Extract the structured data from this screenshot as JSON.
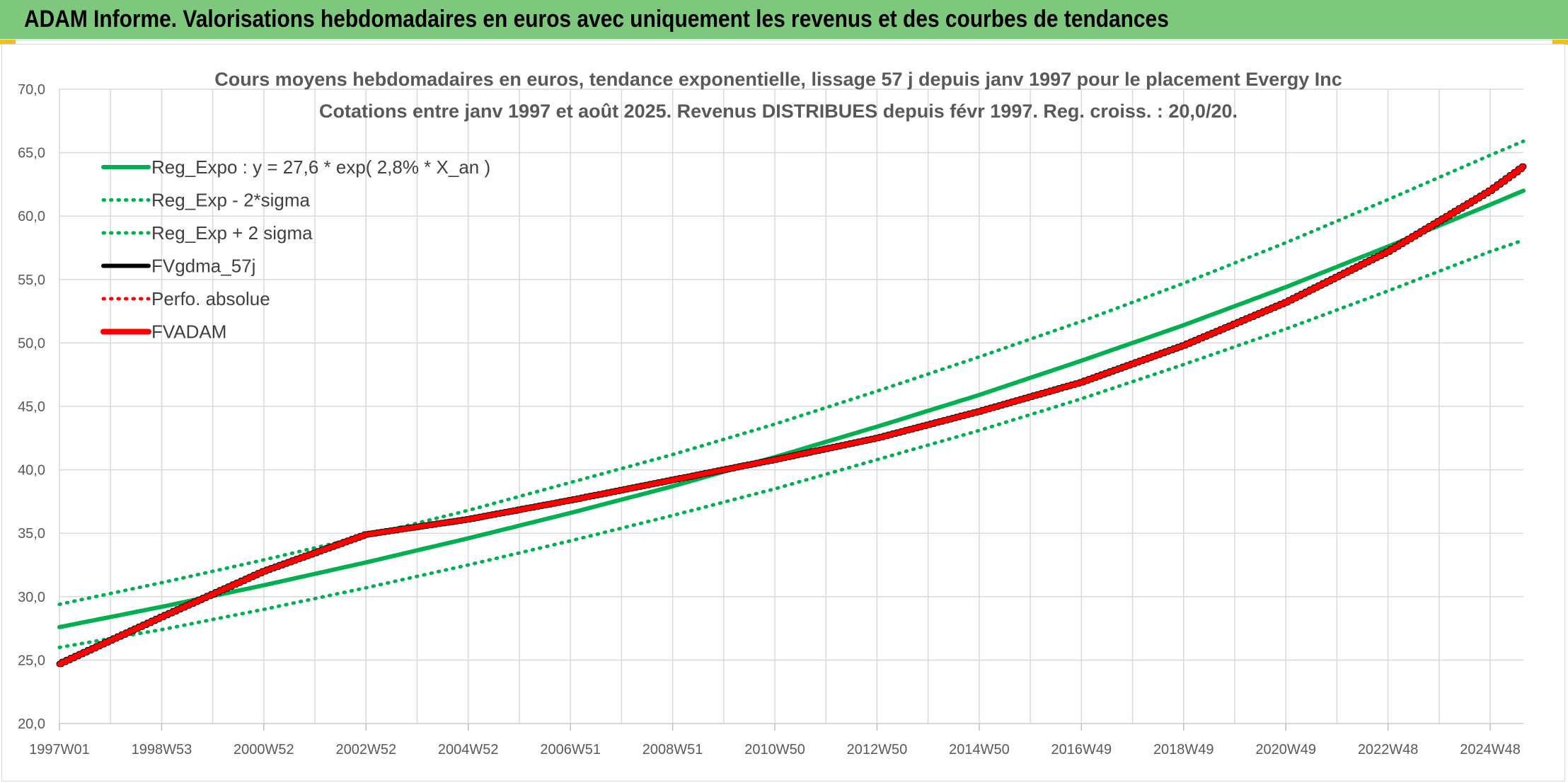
{
  "header": {
    "title": "ADAM Informe. Valorisations hebdomadaires en euros avec uniquement les revenus et des courbes de tendances"
  },
  "colors": {
    "banner": "#7dc87d",
    "trend_green": "#00b050",
    "adam_red": "#ff0000",
    "fv_black": "#000000"
  },
  "chart_data": {
    "type": "line",
    "title": "Cours moyens hebdomadaires en euros, tendance exponentielle, lissage 57 j depuis janv 1997 pour le placement Evergy Inc",
    "subtitle": "Cotations entre janv 1997 et août 2025. Revenus DISTRIBUES depuis févr 1997. Reg. croiss. : 20,0/20.",
    "xlabel": "",
    "ylabel": "",
    "ylim": [
      20,
      70
    ],
    "y_ticks": [
      "70,0",
      "65,0",
      "60,0",
      "55,0",
      "50,0",
      "45,0",
      "40,0",
      "35,0",
      "30,0",
      "25,0",
      "20,0"
    ],
    "x_tick_labels": [
      "1997W01",
      "1998W53",
      "2000W52",
      "2002W52",
      "2004W52",
      "2006W51",
      "2008W51",
      "2010W50",
      "2012W50",
      "2014W50",
      "2016W49",
      "2018W49",
      "2020W49",
      "2022W48",
      "2024W48"
    ],
    "grid": true,
    "legend_position": "top-left",
    "x": [
      1997.0,
      1999.0,
      2001.0,
      2003.0,
      2005.0,
      2007.0,
      2009.0,
      2011.0,
      2013.0,
      2015.0,
      2017.0,
      2019.0,
      2021.0,
      2023.0,
      2025.0,
      2025.65
    ],
    "series": [
      {
        "name": "Reg_Expo : y = 27,6 * exp( 2,8% *  X_an )",
        "style": "solid",
        "color": "#00b050",
        "values": [
          27.6,
          29.2,
          30.9,
          32.7,
          34.6,
          36.6,
          38.7,
          41.0,
          43.4,
          45.9,
          48.6,
          51.4,
          54.4,
          57.6,
          60.9,
          62.0
        ]
      },
      {
        "name": "Reg_Exp - 2*sigma",
        "style": "dotted",
        "color": "#00b050",
        "values": [
          26.0,
          27.4,
          29.0,
          30.7,
          32.5,
          34.4,
          36.4,
          38.5,
          40.8,
          43.1,
          45.6,
          48.3,
          51.1,
          54.1,
          57.2,
          58.1
        ]
      },
      {
        "name": "Reg_Exp + 2 sigma",
        "style": "dotted",
        "color": "#00b050",
        "values": [
          29.4,
          31.1,
          32.9,
          34.8,
          36.8,
          39.0,
          41.2,
          43.6,
          46.2,
          48.9,
          51.7,
          54.7,
          57.9,
          61.3,
          64.8,
          65.9
        ]
      },
      {
        "name": "FVgdma_57j",
        "style": "solid",
        "color": "#000000",
        "values": [
          24.7,
          28.4,
          32.0,
          34.9,
          36.1,
          37.6,
          39.2,
          40.8,
          42.5,
          44.6,
          46.9,
          49.8,
          53.2,
          57.2,
          62.0,
          63.9
        ]
      },
      {
        "name": "Perfo. absolue",
        "style": "dotted",
        "color": "#ff0000",
        "values": [
          24.7,
          28.4,
          32.0,
          34.9,
          36.1,
          37.6,
          39.2,
          40.8,
          42.5,
          44.6,
          46.9,
          49.8,
          53.2,
          57.2,
          62.0,
          63.9
        ]
      },
      {
        "name": "FVADAM",
        "style": "solid-thick",
        "color": "#ff0000",
        "values": [
          24.7,
          28.4,
          32.0,
          34.9,
          36.1,
          37.6,
          39.2,
          40.8,
          42.5,
          44.6,
          46.9,
          49.8,
          53.2,
          57.2,
          62.0,
          63.9
        ]
      }
    ]
  }
}
